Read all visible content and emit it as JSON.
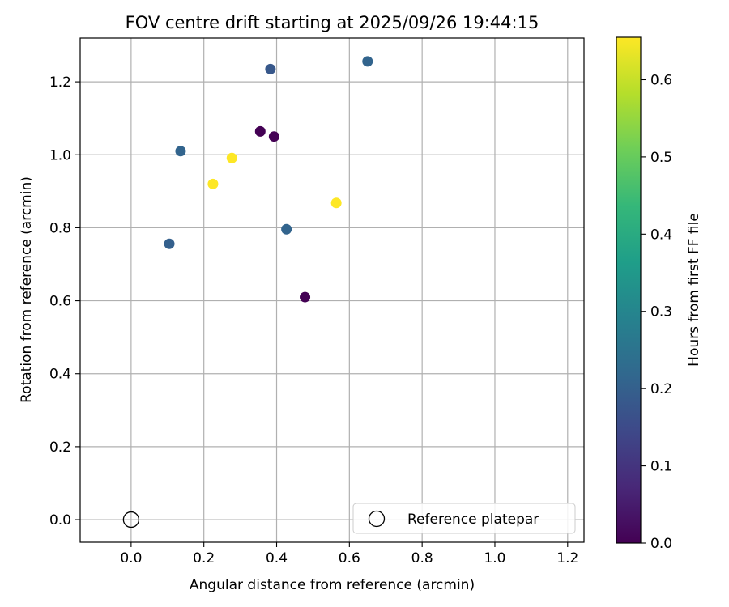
{
  "chart_data": {
    "type": "scatter",
    "title": "FOV centre drift starting at 2025/09/26 19:44:15",
    "xlabel": "Angular distance from reference (arcmin)",
    "ylabel": "Rotation from reference (arcmin)",
    "xlim": [
      -0.14,
      1.245
    ],
    "ylim": [
      -0.062,
      1.32
    ],
    "x_ticks": [
      0.0,
      0.2,
      0.4,
      0.6,
      0.8,
      1.0,
      1.2
    ],
    "x_tick_labels": [
      "0.0",
      "0.2",
      "0.4",
      "0.6",
      "0.8",
      "1.0",
      "1.2"
    ],
    "y_ticks": [
      0.0,
      0.2,
      0.4,
      0.6,
      0.8,
      1.0,
      1.2
    ],
    "y_tick_labels": [
      "0.0",
      "0.2",
      "0.4",
      "0.6",
      "0.8",
      "1.0",
      "1.2"
    ],
    "grid": true,
    "points": [
      {
        "x": 0.355,
        "y": 1.064,
        "c": 0.0
      },
      {
        "x": 0.393,
        "y": 1.05,
        "c": 0.0
      },
      {
        "x": 0.478,
        "y": 0.61,
        "c": 0.0
      },
      {
        "x": 0.136,
        "y": 1.01,
        "c": 0.21
      },
      {
        "x": 0.105,
        "y": 0.756,
        "c": 0.2
      },
      {
        "x": 0.383,
        "y": 1.235,
        "c": 0.18
      },
      {
        "x": 0.65,
        "y": 1.256,
        "c": 0.21
      },
      {
        "x": 0.427,
        "y": 0.796,
        "c": 0.21
      },
      {
        "x": 0.225,
        "y": 0.92,
        "c": 0.655
      },
      {
        "x": 0.277,
        "y": 0.991,
        "c": 0.655
      },
      {
        "x": 0.564,
        "y": 0.868,
        "c": 0.655
      }
    ],
    "reference_point": {
      "x": 0.0,
      "y": 0.0
    },
    "legend": {
      "location": "lower-right",
      "entries": [
        "Reference platepar"
      ]
    },
    "colorbar": {
      "label": "Hours from first FF file",
      "range": [
        0.0,
        0.655
      ],
      "ticks": [
        0.0,
        0.1,
        0.2,
        0.3,
        0.4,
        0.5,
        0.6
      ],
      "tick_labels": [
        "0.0",
        "0.1",
        "0.2",
        "0.3",
        "0.4",
        "0.5",
        "0.6"
      ],
      "colormap": "viridis",
      "stops": [
        "#440154",
        "#482878",
        "#3e4989",
        "#31688e",
        "#26828e",
        "#1f9e89",
        "#35b779",
        "#6ece58",
        "#b5de2b",
        "#fde725"
      ]
    }
  }
}
